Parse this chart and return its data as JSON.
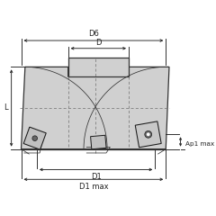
{
  "bg_color": "#ffffff",
  "line_color": "#1a1a1a",
  "dim_color": "#222222",
  "body_fill": "#d0d0d0",
  "body_edge": "#333333",
  "dashed_color": "#777777",
  "insert_fill": "#b8b8b8",
  "insert_edge": "#111111",
  "labels": {
    "D6": "D6",
    "D": "D",
    "L": "L",
    "D1": "D1",
    "D1max": "D1 max",
    "Ap1max": "Ap1 max"
  }
}
